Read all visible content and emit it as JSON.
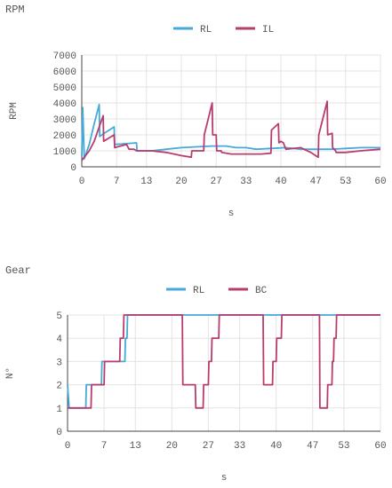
{
  "chart_data": [
    {
      "type": "line",
      "title": "RPM",
      "xlabel": "s",
      "ylabel": "RPM",
      "xlim": [
        0,
        60
      ],
      "ylim": [
        0,
        7000
      ],
      "xticks": [
        0,
        7,
        13,
        20,
        27,
        33,
        40,
        47,
        53,
        60
      ],
      "yticks": [
        0,
        1000,
        2000,
        3000,
        4000,
        5000,
        6000,
        7000
      ],
      "grid": true,
      "legend": "top-center",
      "series": [
        {
          "name": "RL",
          "color": "#45a9d9",
          "points": [
            [
              0,
              600
            ],
            [
              0.2,
              3700
            ],
            [
              0.5,
              500
            ],
            [
              1.5,
              1400
            ],
            [
              2.5,
              2700
            ],
            [
              3.5,
              3900
            ],
            [
              3.6,
              1900
            ],
            [
              4.5,
              2100
            ],
            [
              6.5,
              2500
            ],
            [
              6.6,
              1400
            ],
            [
              9,
              1450
            ],
            [
              11,
              1500
            ],
            [
              11.1,
              1000
            ],
            [
              14,
              1000
            ],
            [
              17,
              1100
            ],
            [
              20,
              1200
            ],
            [
              23,
              1250
            ],
            [
              26,
              1300
            ],
            [
              29,
              1300
            ],
            [
              31,
              1200
            ],
            [
              33,
              1200
            ],
            [
              35,
              1100
            ],
            [
              38,
              1150
            ],
            [
              41,
              1200
            ],
            [
              44,
              1100
            ],
            [
              47,
              1100
            ],
            [
              50,
              1100
            ],
            [
              53,
              1150
            ],
            [
              56,
              1200
            ],
            [
              60,
              1200
            ]
          ]
        },
        {
          "name": "IL",
          "color": "#b83d6e",
          "points": [
            [
              0,
              400
            ],
            [
              0.5,
              600
            ],
            [
              1.5,
              1000
            ],
            [
              2.5,
              1600
            ],
            [
              3.5,
              2500
            ],
            [
              4.3,
              3200
            ],
            [
              4.4,
              1600
            ],
            [
              6.5,
              2000
            ],
            [
              6.6,
              1200
            ],
            [
              9,
              1400
            ],
            [
              9.5,
              1100
            ],
            [
              10.5,
              1100
            ],
            [
              11,
              1000
            ],
            [
              14,
              1000
            ],
            [
              17,
              900
            ],
            [
              20,
              700
            ],
            [
              22,
              600
            ],
            [
              22.1,
              1000
            ],
            [
              24.5,
              1000
            ],
            [
              24.6,
              2000
            ],
            [
              26.2,
              4000
            ],
            [
              26.3,
              2000
            ],
            [
              27,
              2000
            ],
            [
              27.1,
              1000
            ],
            [
              28,
              1000
            ],
            [
              28.1,
              900
            ],
            [
              30,
              800
            ],
            [
              33,
              800
            ],
            [
              36,
              800
            ],
            [
              38,
              850
            ],
            [
              38.1,
              2300
            ],
            [
              39.5,
              2700
            ],
            [
              39.6,
              1500
            ],
            [
              40,
              1600
            ],
            [
              40.5,
              1500
            ],
            [
              41,
              1100
            ],
            [
              44,
              1200
            ],
            [
              46,
              900
            ],
            [
              47.5,
              600
            ],
            [
              47.6,
              2000
            ],
            [
              49.3,
              4100
            ],
            [
              49.4,
              2000
            ],
            [
              50.3,
              2100
            ],
            [
              50.4,
              1200
            ],
            [
              51,
              1000
            ],
            [
              51.1,
              900
            ],
            [
              53,
              900
            ],
            [
              56,
              1000
            ],
            [
              60,
              1100
            ]
          ]
        }
      ]
    },
    {
      "type": "line",
      "title": "Gear",
      "xlabel": "s",
      "ylabel": "N°",
      "xlim": [
        0,
        60
      ],
      "ylim": [
        0,
        5
      ],
      "xticks": [
        0,
        7,
        13,
        20,
        27,
        33,
        40,
        47,
        53,
        60
      ],
      "yticks": [
        0,
        1,
        2,
        3,
        4,
        5
      ],
      "grid": true,
      "legend": "top-center",
      "series": [
        {
          "name": "RL",
          "color": "#45a9d9",
          "points": [
            [
              0,
              2
            ],
            [
              0.3,
              1
            ],
            [
              3.5,
              1
            ],
            [
              3.6,
              2
            ],
            [
              6.5,
              2
            ],
            [
              6.6,
              3
            ],
            [
              11,
              3
            ],
            [
              11.1,
              4
            ],
            [
              11.4,
              4
            ],
            [
              11.5,
              5
            ],
            [
              60,
              5
            ]
          ]
        },
        {
          "name": "BC",
          "color": "#b83d6e",
          "points": [
            [
              0,
              1
            ],
            [
              4.5,
              1
            ],
            [
              4.6,
              2
            ],
            [
              7,
              2
            ],
            [
              7.1,
              3
            ],
            [
              10,
              3
            ],
            [
              10.1,
              4
            ],
            [
              10.7,
              4
            ],
            [
              10.8,
              5
            ],
            [
              22,
              5
            ],
            [
              22.1,
              2
            ],
            [
              24.5,
              2
            ],
            [
              24.6,
              1
            ],
            [
              26,
              1
            ],
            [
              26.1,
              2
            ],
            [
              27,
              2
            ],
            [
              27.1,
              3
            ],
            [
              27.6,
              3
            ],
            [
              27.7,
              4
            ],
            [
              29,
              4
            ],
            [
              29.1,
              5
            ],
            [
              37.5,
              5
            ],
            [
              37.6,
              2
            ],
            [
              39.3,
              2
            ],
            [
              39.4,
              3
            ],
            [
              40,
              3
            ],
            [
              40.1,
              4
            ],
            [
              41,
              4
            ],
            [
              41.1,
              5
            ],
            [
              48.3,
              5
            ],
            [
              48.4,
              1
            ],
            [
              49.8,
              1
            ],
            [
              49.9,
              2
            ],
            [
              50.7,
              2
            ],
            [
              50.8,
              3
            ],
            [
              51,
              3
            ],
            [
              51.1,
              4
            ],
            [
              51.5,
              4
            ],
            [
              51.6,
              5
            ],
            [
              60,
              5
            ]
          ]
        }
      ]
    }
  ]
}
